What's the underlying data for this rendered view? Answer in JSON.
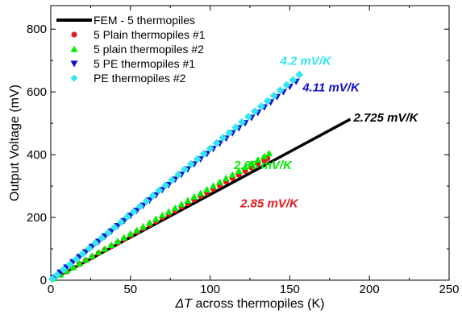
{
  "chart_data": {
    "type": "scatter",
    "xlabel_prefix": "ΔT",
    "xlabel_rest": " across thermopiles (K)",
    "ylabel": "Output Voltage (mV)",
    "xlim": [
      0,
      250
    ],
    "ylim": [
      0,
      875
    ],
    "xticks": [
      0,
      50,
      100,
      150,
      200,
      250
    ],
    "yticks": [
      0,
      200,
      400,
      600,
      800
    ],
    "grid": false,
    "legend_position": "top-left",
    "series": [
      {
        "name": "FEM - 5 thermopiles",
        "kind": "line",
        "color": "#000000",
        "x": [
          0,
          188
        ],
        "y": [
          0,
          513
        ]
      },
      {
        "name": "5 Plain thermopiles #1",
        "kind": "marker",
        "marker": "circle",
        "color": "#e41a1c",
        "x": [
          2,
          6,
          10,
          14,
          18,
          22,
          26,
          30,
          34,
          38,
          42,
          46,
          50,
          54,
          58,
          62,
          66,
          70,
          74,
          78,
          82,
          86,
          90,
          94,
          98,
          102,
          106,
          110,
          114,
          118,
          122,
          126,
          130,
          134,
          136
        ],
        "y": [
          6,
          17,
          28,
          40,
          51,
          63,
          74,
          86,
          97,
          108,
          120,
          131,
          143,
          154,
          165,
          177,
          188,
          200,
          211,
          222,
          234,
          245,
          257,
          268,
          279,
          291,
          302,
          314,
          325,
          336,
          348,
          359,
          371,
          382,
          388
        ]
      },
      {
        "name": "5 plain thermopiles #2",
        "kind": "marker",
        "marker": "triangle-up",
        "color": "#00ee00",
        "x": [
          2,
          6,
          10,
          14,
          18,
          22,
          26,
          30,
          34,
          38,
          42,
          46,
          50,
          54,
          58,
          62,
          66,
          70,
          74,
          78,
          82,
          86,
          90,
          94,
          98,
          102,
          106,
          110,
          114,
          118,
          122,
          126,
          130,
          134,
          137
        ],
        "y": [
          6,
          18,
          30,
          41,
          53,
          65,
          77,
          89,
          100,
          112,
          124,
          136,
          148,
          159,
          171,
          183,
          195,
          207,
          218,
          230,
          242,
          254,
          266,
          277,
          289,
          301,
          313,
          325,
          336,
          348,
          360,
          372,
          384,
          395,
          404
        ]
      },
      {
        "name": "5 PE thermopiles #1",
        "kind": "marker",
        "marker": "triangle-down",
        "color": "#1010cc",
        "x": [
          2,
          6,
          10,
          14,
          18,
          22,
          26,
          30,
          34,
          38,
          42,
          46,
          50,
          54,
          58,
          62,
          66,
          70,
          74,
          78,
          82,
          86,
          90,
          94,
          98,
          102,
          106,
          110,
          114,
          118,
          122,
          126,
          130,
          134,
          138,
          142,
          146,
          150,
          154
        ],
        "y": [
          8,
          25,
          41,
          58,
          74,
          90,
          107,
          123,
          140,
          156,
          173,
          189,
          206,
          222,
          238,
          255,
          271,
          288,
          304,
          321,
          337,
          354,
          370,
          386,
          403,
          419,
          436,
          452,
          469,
          485,
          501,
          518,
          534,
          551,
          567,
          584,
          600,
          617,
          633
        ]
      },
      {
        "name": "PE thermopiles #2",
        "kind": "marker",
        "marker": "diamond",
        "color": "#33e6f0",
        "x": [
          1,
          4,
          8,
          12,
          16,
          20,
          24,
          28,
          32,
          36,
          40,
          44,
          48,
          52,
          56,
          60,
          64,
          68,
          72,
          76,
          80,
          84,
          88,
          92,
          96,
          100,
          104,
          108,
          112,
          116,
          120,
          124,
          128,
          132,
          136,
          140,
          144,
          148,
          152,
          156
        ],
        "y": [
          4,
          17,
          34,
          50,
          67,
          84,
          101,
          118,
          134,
          151,
          168,
          185,
          202,
          218,
          235,
          252,
          269,
          286,
          302,
          319,
          336,
          353,
          370,
          386,
          403,
          420,
          437,
          454,
          470,
          487,
          504,
          521,
          538,
          554,
          571,
          588,
          605,
          622,
          638,
          655
        ]
      }
    ],
    "annotations": [
      {
        "text": "4.2 mV/K",
        "color": "#33e6f0",
        "x": 144,
        "y": 687
      },
      {
        "text": "4.11 mV/K",
        "color": "#1010cc",
        "x": 158,
        "y": 602
      },
      {
        "text": "2.725 mV/K",
        "color": "#000000",
        "x": 190,
        "y": 505
      },
      {
        "text": "2.95 mV/K",
        "color": "#00ee00",
        "x": 115,
        "y": 354
      },
      {
        "text": "2.85 mV/K",
        "color": "#e41a1c",
        "x": 119,
        "y": 232
      }
    ]
  }
}
